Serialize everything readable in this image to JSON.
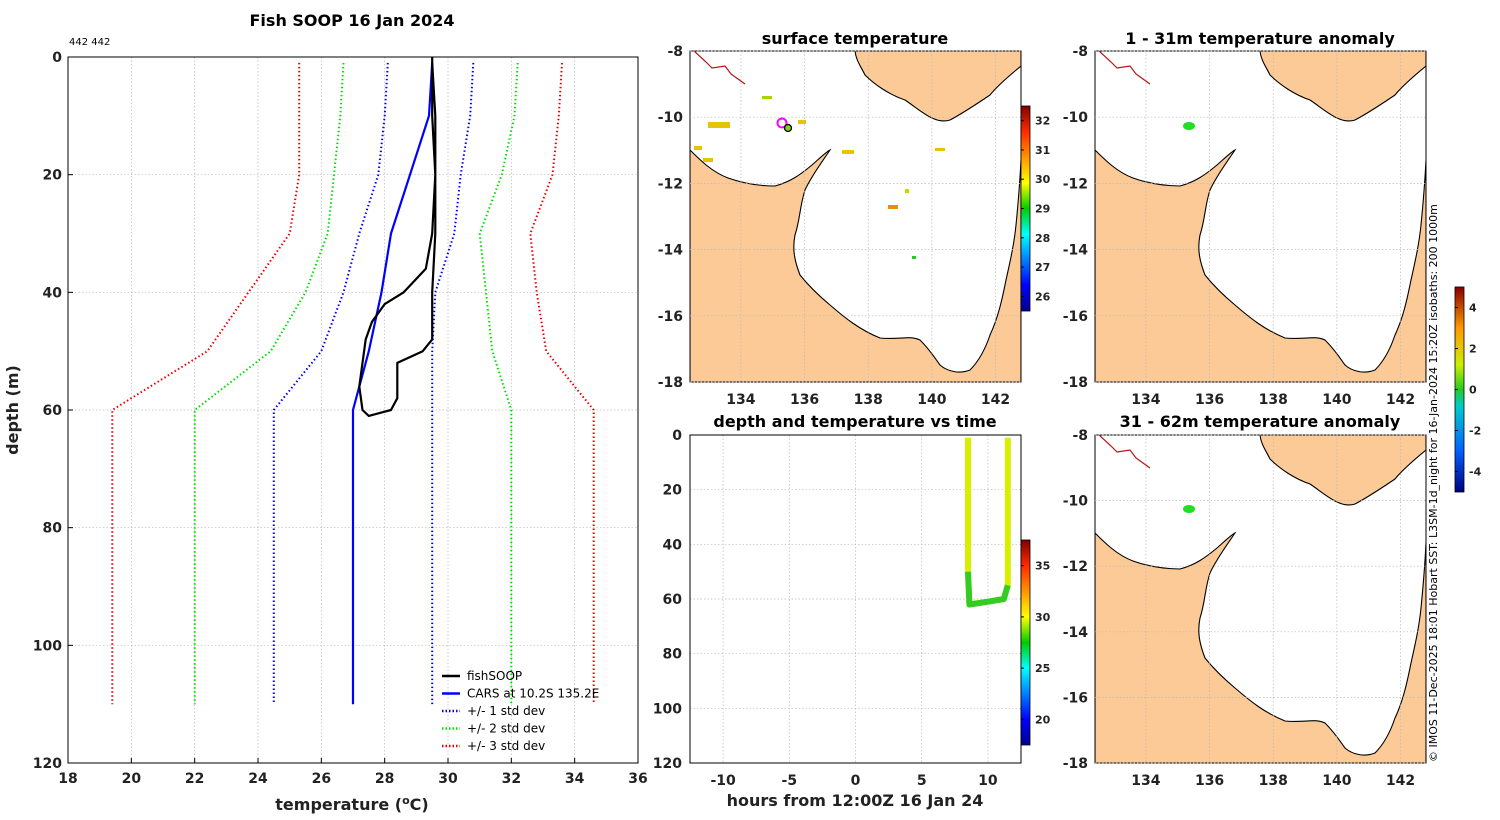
{
  "profile_chart": {
    "title": "Fish SOOP 16 Jan 2024",
    "corner_note": "442 442",
    "xlabel_text": "temperature (",
    "xlabel_sup": "o",
    "xlabel_unit": "C)",
    "ylabel": "depth (m)",
    "chart_data": {
      "type": "line",
      "xlim": [
        18,
        36
      ],
      "ylim": [
        0,
        120
      ],
      "y_reversed": true,
      "xticks": [
        18,
        20,
        22,
        24,
        26,
        28,
        30,
        32,
        34,
        36
      ],
      "yticks": [
        0,
        20,
        40,
        60,
        80,
        100,
        120
      ],
      "series": [
        {
          "name": "fishSOOP",
          "color": "#000000",
          "style": "solid",
          "points": [
            [
              29.5,
              0
            ],
            [
              29.5,
              10
            ],
            [
              29.6,
              20
            ],
            [
              29.5,
              30
            ],
            [
              29.3,
              36
            ],
            [
              28.6,
              40
            ],
            [
              28.0,
              42
            ],
            [
              27.6,
              45
            ],
            [
              27.4,
              48
            ],
            [
              27.3,
              52
            ],
            [
              27.2,
              56
            ],
            [
              27.3,
              60
            ],
            [
              27.5,
              61
            ],
            [
              28.2,
              60
            ],
            [
              28.4,
              58
            ],
            [
              28.4,
              52
            ],
            [
              29.2,
              50
            ],
            [
              29.5,
              48
            ],
            [
              29.5,
              40
            ],
            [
              29.6,
              30
            ],
            [
              29.6,
              10
            ],
            [
              29.5,
              1
            ]
          ]
        },
        {
          "name": "CARS at 10.2S 135.2E",
          "color": "#0000ff",
          "style": "solid",
          "points": [
            [
              29.5,
              1
            ],
            [
              29.4,
              10
            ],
            [
              28.8,
              20
            ],
            [
              28.2,
              30
            ],
            [
              27.9,
              40
            ],
            [
              27.5,
              50
            ],
            [
              27.0,
              60
            ],
            [
              27.0,
              110
            ]
          ]
        },
        {
          "name": "+/- 1 std dev",
          "color": "#0000ff",
          "style": "dotted",
          "points": [
            [
              28.1,
              1
            ],
            [
              28.0,
              10
            ],
            [
              27.8,
              20
            ],
            [
              27.2,
              30
            ],
            [
              26.7,
              40
            ],
            [
              26.0,
              50
            ],
            [
              24.5,
              60
            ],
            [
              24.5,
              110
            ]
          ]
        },
        {
          "name": "+/- 1 std dev (upper)",
          "color": "#0000ff",
          "style": "dotted",
          "points": [
            [
              30.8,
              1
            ],
            [
              30.7,
              10
            ],
            [
              30.4,
              20
            ],
            [
              30.2,
              30
            ],
            [
              29.6,
              40
            ],
            [
              29.5,
              50
            ],
            [
              29.5,
              60
            ],
            [
              29.5,
              110
            ]
          ]
        },
        {
          "name": "+/- 2 std dev",
          "color": "#00dd00",
          "style": "dotted",
          "points": [
            [
              26.7,
              1
            ],
            [
              26.6,
              10
            ],
            [
              26.4,
              20
            ],
            [
              26.2,
              30
            ],
            [
              25.5,
              40
            ],
            [
              24.4,
              50
            ],
            [
              22.0,
              60
            ],
            [
              22.0,
              110
            ]
          ]
        },
        {
          "name": "+/- 2 std dev (upper)",
          "color": "#00dd00",
          "style": "dotted",
          "points": [
            [
              32.2,
              1
            ],
            [
              32.1,
              10
            ],
            [
              31.7,
              20
            ],
            [
              31.0,
              30
            ],
            [
              31.2,
              40
            ],
            [
              31.4,
              50
            ],
            [
              32.0,
              60
            ],
            [
              32.0,
              110
            ]
          ]
        },
        {
          "name": "+/- 3 std dev",
          "color": "#ee0000",
          "style": "dotted",
          "points": [
            [
              25.3,
              1
            ],
            [
              25.3,
              10
            ],
            [
              25.3,
              20
            ],
            [
              25.0,
              30
            ],
            [
              23.7,
              40
            ],
            [
              22.4,
              50
            ],
            [
              19.4,
              60
            ],
            [
              19.4,
              110
            ]
          ]
        },
        {
          "name": "+/- 3 std dev (upper)",
          "color": "#ee0000",
          "style": "dotted",
          "points": [
            [
              33.6,
              1
            ],
            [
              33.5,
              10
            ],
            [
              33.3,
              20
            ],
            [
              32.6,
              30
            ],
            [
              32.8,
              40
            ],
            [
              33.1,
              50
            ],
            [
              34.6,
              60
            ],
            [
              34.6,
              110
            ]
          ]
        }
      ]
    },
    "legend": [
      {
        "label": "fishSOOP",
        "color": "#000000",
        "style": "solid"
      },
      {
        "label": "CARS at 10.2S 135.2E",
        "color": "#0000ff",
        "style": "solid"
      },
      {
        "label": "+/- 1 std dev",
        "color": "#0000ff",
        "style": "dotted"
      },
      {
        "label": "+/- 2 std dev",
        "color": "#00dd00",
        "style": "dotted"
      },
      {
        "label": "+/- 3 std dev",
        "color": "#ee0000",
        "style": "dotted"
      }
    ]
  },
  "sst_map": {
    "title": "surface temperature",
    "xticks": [
      "134",
      "136",
      "138",
      "140",
      "142"
    ],
    "yticks": [
      "-8",
      "-10",
      "-12",
      "-14",
      "-16",
      "-18"
    ],
    "colorbar_ticks": [
      "32",
      "31",
      "30",
      "29",
      "28",
      "27",
      "26"
    ]
  },
  "anom_map_1": {
    "title": "1 - 31m temperature anomaly",
    "xticks": [
      "134",
      "136",
      "138",
      "140",
      "142"
    ],
    "yticks": [
      "-8",
      "-10",
      "-12",
      "-14",
      "-16",
      "-18"
    ]
  },
  "anom_map_2": {
    "title": "31 - 62m temperature anomaly",
    "xticks": [
      "134",
      "136",
      "138",
      "140",
      "142"
    ],
    "yticks": [
      "-8",
      "-10",
      "-12",
      "-14",
      "-16",
      "-18"
    ]
  },
  "anomaly_colorbar_ticks": [
    "4",
    "2",
    "0",
    "-2",
    "-4"
  ],
  "time_chart": {
    "title": "depth and temperature vs time",
    "xlabel": "hours from 12:00Z 16 Jan 24",
    "chart_data": {
      "type": "scatter",
      "xlim": [
        -12.5,
        12.5
      ],
      "ylim": [
        0,
        120
      ],
      "y_reversed": true,
      "xticks": [
        -10,
        -5,
        0,
        5,
        10
      ],
      "yticks": [
        0,
        20,
        40,
        60,
        80,
        100,
        120
      ],
      "colorbar_ticks": [
        "35",
        "30",
        "25",
        "20"
      ],
      "track": [
        [
          8.5,
          1
        ],
        [
          8.5,
          50
        ],
        [
          8.6,
          62
        ],
        [
          10.0,
          61
        ],
        [
          11.2,
          60
        ],
        [
          11.5,
          55
        ],
        [
          11.5,
          1
        ]
      ]
    }
  },
  "credit": "© IMOS 11-Dec-2025 18:01 Hobart SST: L3SM-1d_night for 16-Jan-2024 15:20Z isobaths: 200  1000m"
}
